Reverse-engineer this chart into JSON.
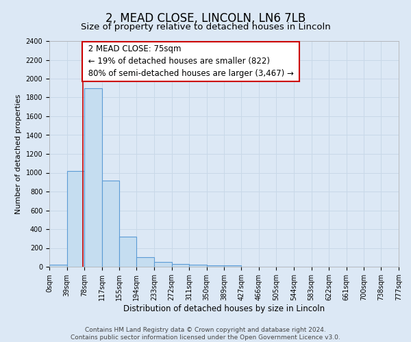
{
  "title": "2, MEAD CLOSE, LINCOLN, LN6 7LB",
  "subtitle": "Size of property relative to detached houses in Lincoln",
  "xlabel": "Distribution of detached houses by size in Lincoln",
  "ylabel": "Number of detached properties",
  "footer_line1": "Contains HM Land Registry data © Crown copyright and database right 2024.",
  "footer_line2": "Contains public sector information licensed under the Open Government Licence v3.0.",
  "annotation_title": "2 MEAD CLOSE: 75sqm",
  "annotation_line1": "← 19% of detached houses are smaller (822)",
  "annotation_line2": "80% of semi-detached houses are larger (3,467) →",
  "bin_edges": [
    0,
    39,
    78,
    117,
    155,
    194,
    233,
    272,
    311,
    350,
    389,
    427,
    466,
    505,
    544,
    583,
    622,
    661,
    700,
    738,
    777
  ],
  "bin_counts": [
    25,
    1020,
    1900,
    920,
    320,
    105,
    50,
    30,
    20,
    15,
    12,
    0,
    0,
    0,
    0,
    0,
    0,
    0,
    0,
    0
  ],
  "bar_color": "#c5ddf0",
  "bar_edge_color": "#5b9bd5",
  "property_line_x": 75,
  "property_line_color": "#cc0000",
  "ylim": [
    0,
    2400
  ],
  "yticks": [
    0,
    200,
    400,
    600,
    800,
    1000,
    1200,
    1400,
    1600,
    1800,
    2000,
    2200,
    2400
  ],
  "grid_color": "#c8d8e8",
  "background_color": "#dce8f5",
  "plot_bg_color": "#dce8f5",
  "annotation_box_color": "#ffffff",
  "annotation_border_color": "#cc0000",
  "title_fontsize": 12,
  "subtitle_fontsize": 9.5,
  "xlabel_fontsize": 8.5,
  "ylabel_fontsize": 8,
  "tick_fontsize": 7,
  "annotation_fontsize": 8.5,
  "footer_fontsize": 6.5
}
